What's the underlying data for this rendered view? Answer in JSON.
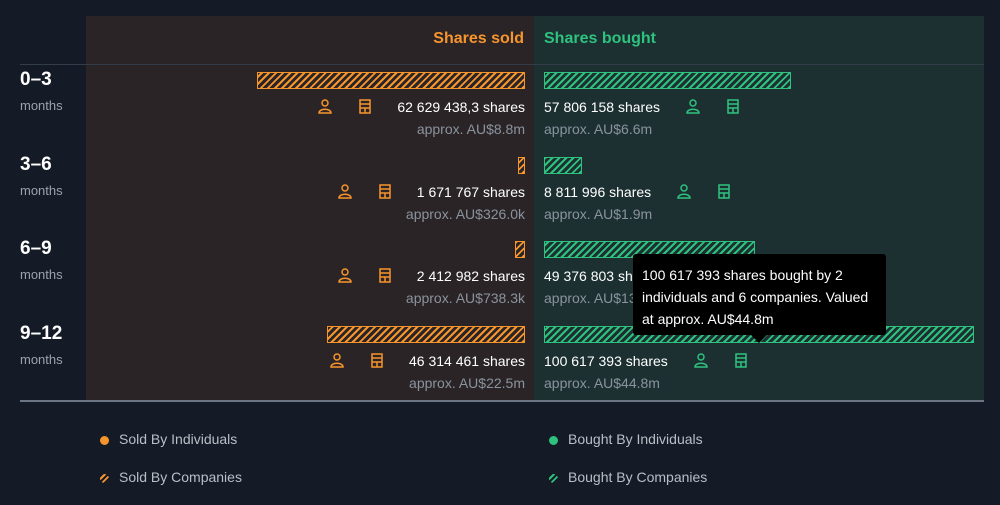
{
  "colors": {
    "sold": "#f7952d",
    "bought": "#2ec27e"
  },
  "headers": {
    "sold": "Shares sold",
    "bought": "Shares bought"
  },
  "rows": [
    {
      "period": "0–3",
      "unit": "months",
      "sold_shares": "62 629 438,3 shares",
      "sold_approx": "approx. AU$8.8m",
      "bought_shares": "57 806 158 shares",
      "bought_approx": "approx. AU$6.6m"
    },
    {
      "period": "3–6",
      "unit": "months",
      "sold_shares": "1 671 767 shares",
      "sold_approx": "approx. AU$326.0k",
      "bought_shares": "8 811 996 shares",
      "bought_approx": "approx. AU$1.9m"
    },
    {
      "period": "6–9",
      "unit": "months",
      "sold_shares": "2 412 982 shares",
      "sold_approx": "approx. AU$738.3k",
      "bought_shares": "49 376 803 shares",
      "bought_approx": "approx. AU$13"
    },
    {
      "period": "9–12",
      "unit": "months",
      "sold_shares": "46 314 461 shares",
      "sold_approx": "approx. AU$22.5m",
      "bought_shares": "100 617 393 shares",
      "bought_approx": "approx. AU$44.8m"
    }
  ],
  "tooltip": {
    "text": "100 617 393 shares bought by 2 individuals and 6 companies. Valued at approx. AU$44.8m"
  },
  "legend": {
    "sold_individuals": "Sold By Individuals",
    "sold_companies": "Sold By Companies",
    "bought_individuals": "Bought By Individuals",
    "bought_companies": "Bought By Companies"
  },
  "chart_data": {
    "type": "bar",
    "orientation": "horizontal-diverging",
    "categories": [
      "0–3 months",
      "3–6 months",
      "6–9 months",
      "9–12 months"
    ],
    "series": [
      {
        "name": "Shares sold",
        "values": [
          62629438.3,
          1671767,
          2412982,
          46314461
        ]
      },
      {
        "name": "Shares bought",
        "values": [
          57806158,
          8811996,
          49376803,
          100617393
        ]
      }
    ],
    "icons": [
      "person-icon",
      "building-icon"
    ]
  }
}
